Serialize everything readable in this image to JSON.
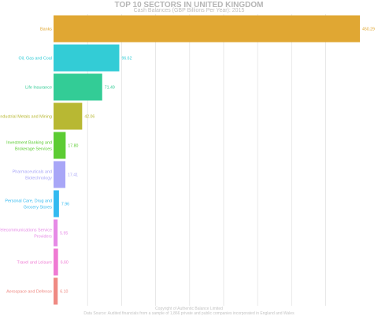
{
  "chart_data": {
    "type": "bar",
    "orientation": "horizontal",
    "title": "TOP 10 SECTORS IN UNITED KINGDOM",
    "subtitle": "Cash Balances (GBP Billions Per Year): 2015",
    "categories": [
      "Banks",
      "Oil, Gas and Coal",
      "Life Insurance",
      "Industrial Metals and Mining",
      "Investment Banking and Brokerage Services",
      "Pharmaceuticals and Biotechnology",
      "Personal Care, Drug and Grocery Stores",
      "Telecommunications Service Providers",
      "Travel and Leisure",
      "Aerospace and Defense"
    ],
    "category_lines": [
      [
        "Banks"
      ],
      [
        "Oil, Gas and Coal"
      ],
      [
        "Life Insurance"
      ],
      [
        "Industrial Metals and Mining"
      ],
      [
        "Investment Banking and",
        "Brokerage Services"
      ],
      [
        "Pharmaceuticals and",
        "Biotechnology"
      ],
      [
        "Personal Care, Drug and",
        "Grocery Stores"
      ],
      [
        "Telecommunications Service",
        "Providers"
      ],
      [
        "Travel and Leisure"
      ],
      [
        "Aerospace and Defense"
      ]
    ],
    "values": [
      450.29,
      96.62,
      71.49,
      42.06,
      17.8,
      17.41,
      7.96,
      5.95,
      6.6,
      6.1
    ],
    "value_labels": [
      "450.29",
      "96.62",
      "71.49",
      "42.06",
      "17.80",
      "17.41",
      "7.96",
      "5.95",
      "6.60",
      "6.10"
    ],
    "colors": [
      "#e0a733",
      "#33ccd6",
      "#33cc96",
      "#b8b833",
      "#5ccc33",
      "#a8a6f7",
      "#33baf0",
      "#e68ae6",
      "#ef7ad3",
      "#ef8a83"
    ],
    "xlim": [
      0,
      450.29
    ],
    "grid": true,
    "footer": [
      "Copyright of Authentic Balance Limited",
      "Data Source: Audited financials from a sample of 1,866 private and public companies incorporated in England and Wales"
    ]
  }
}
